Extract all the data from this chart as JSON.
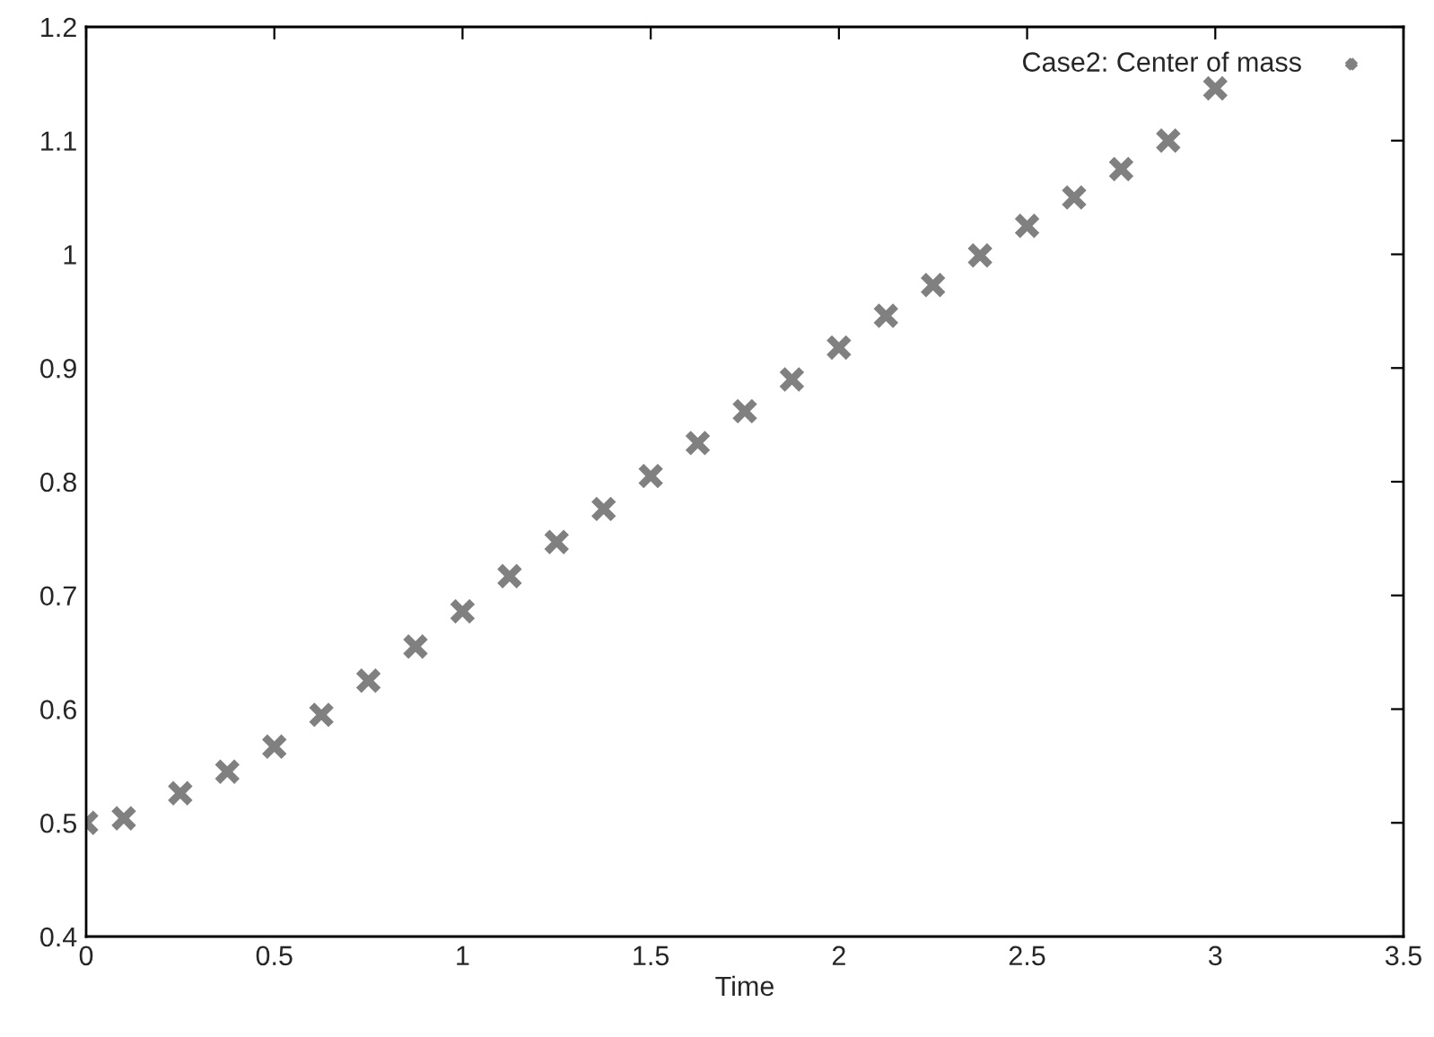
{
  "chart_data": {
    "type": "scatter",
    "xlabel": "Time",
    "xlim": [
      0,
      3.5
    ],
    "xticks": [
      0,
      0.5,
      1,
      1.5,
      2,
      2.5,
      3,
      3.5
    ],
    "ylim": [
      0.4,
      1.2
    ],
    "yticks": [
      0.4,
      0.5,
      0.6,
      0.7,
      0.8,
      0.9,
      1,
      1.1,
      1.2
    ],
    "grid": false,
    "legend": "top right",
    "marker": "cross",
    "x": [
      0,
      0.1,
      0.25,
      0.375,
      0.5,
      0.625,
      0.75,
      0.875,
      1,
      1.125,
      1.25,
      1.375,
      1.5,
      1.625,
      1.75,
      1.875,
      2,
      2.125,
      2.25,
      2.375,
      2.5,
      2.625,
      2.75,
      2.875,
      3
    ],
    "series": [
      {
        "name": "Case2: Center of mass",
        "color": "#808080",
        "values": [
          0.5,
          0.504,
          0.526,
          0.545,
          0.567,
          0.595,
          0.625,
          0.655,
          0.686,
          0.717,
          0.747,
          0.776,
          0.805,
          0.834,
          0.862,
          0.89,
          0.918,
          0.946,
          0.973,
          0.999,
          1.025,
          1.05,
          1.075,
          1.1,
          1.146
        ]
      }
    ]
  }
}
